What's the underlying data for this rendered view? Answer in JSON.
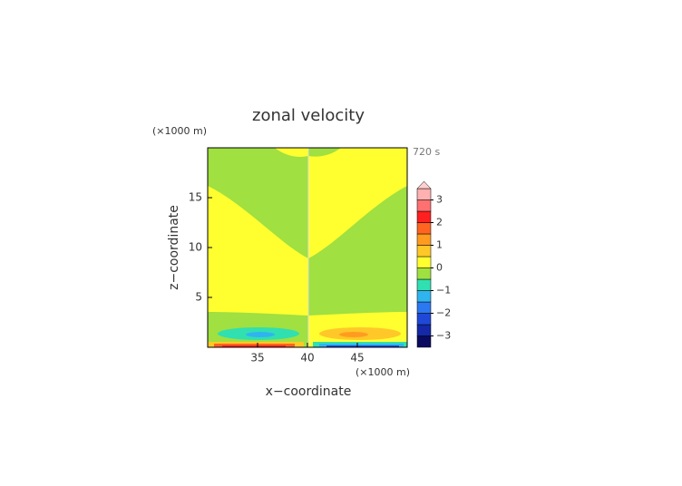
{
  "chart_data": {
    "type": "contour",
    "title": "zonal velocity",
    "xlabel": "x−coordinate",
    "ylabel": "z−coordinate",
    "x_unit": "(×1000 m)",
    "y_unit": "(×1000 m)",
    "time_label": "720 s",
    "xlim": [
      30,
      50
    ],
    "ylim": [
      0,
      20
    ],
    "xticks": [
      35,
      40,
      45
    ],
    "yticks": [
      5,
      10,
      15
    ],
    "colorbar": {
      "levels": [
        -3.5,
        -3,
        -2.5,
        -2,
        -1.5,
        -1,
        -0.5,
        0,
        0.5,
        1,
        1.5,
        2,
        2.5,
        3,
        3.5
      ],
      "colors": [
        "#0a0a60",
        "#1428a8",
        "#2048d8",
        "#2c78f0",
        "#30b4f0",
        "#30e0b0",
        "#a0e040",
        "#ffff30",
        "#ffc828",
        "#ff9c20",
        "#ff6420",
        "#ff2020",
        "#ff7070",
        "#ffb0b0"
      ],
      "extend_color": "#ffd0d0",
      "ticks": [
        {
          "value": -3,
          "label": "−3"
        },
        {
          "value": -2,
          "label": "−2"
        },
        {
          "value": -1,
          "label": "−1"
        },
        0,
        1,
        2,
        3
      ]
    }
  }
}
